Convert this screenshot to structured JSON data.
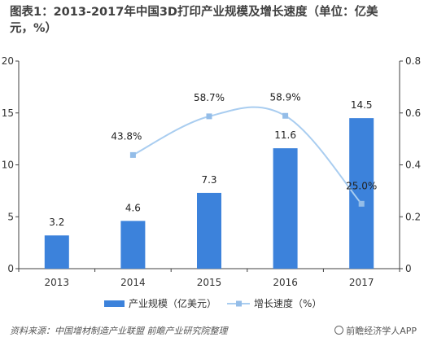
{
  "title": "图表1：2013-2017年中国3D打印产业规模及增长速度（单位：亿美元，%）",
  "source_text": "资料来源：中国增材制造产业联盟 前瞻产业研究院整理",
  "brand_text": "前瞻经济学人APP",
  "colors": {
    "bar": "#3c82db",
    "line": "#a9cdf0",
    "marker": "#94bde8",
    "axis": "#404040"
  },
  "chart_data": {
    "type": "bar",
    "categories": [
      "2013",
      "2014",
      "2015",
      "2016",
      "2017"
    ],
    "y_left": {
      "min": 0,
      "max": 20,
      "ticks": [
        "0",
        "5",
        "10",
        "15",
        "20"
      ]
    },
    "y_right": {
      "min": 0,
      "max": 0.8,
      "ticks": [
        "0",
        "0.2",
        "0.4",
        "0.6",
        "0.8"
      ]
    },
    "grid": false,
    "legend_position": "bottom",
    "series": [
      {
        "name": "产业规模（亿美元）",
        "type": "bar",
        "axis": "left",
        "values": [
          3.2,
          4.6,
          7.3,
          11.6,
          14.5
        ],
        "labels": [
          "3.2",
          "4.6",
          "7.3",
          "11.6",
          "14.5"
        ]
      },
      {
        "name": "增长速度（%）",
        "type": "line",
        "axis": "right",
        "values": [
          null,
          0.438,
          0.587,
          0.589,
          0.25
        ],
        "labels": [
          "",
          "43.8%",
          "58.7%",
          "58.9%",
          "25.0%"
        ]
      }
    ]
  }
}
